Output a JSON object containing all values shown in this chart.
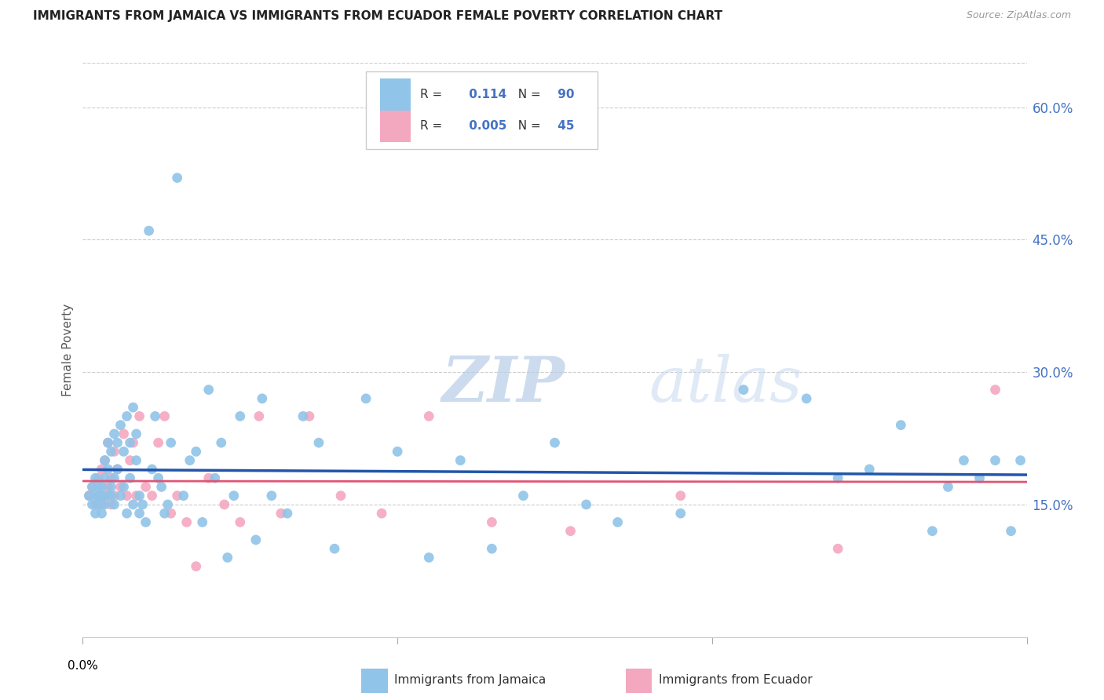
{
  "title": "IMMIGRANTS FROM JAMAICA VS IMMIGRANTS FROM ECUADOR FEMALE POVERTY CORRELATION CHART",
  "source": "Source: ZipAtlas.com",
  "ylabel": "Female Poverty",
  "right_yticks": [
    "60.0%",
    "45.0%",
    "30.0%",
    "15.0%"
  ],
  "right_ytick_vals": [
    0.6,
    0.45,
    0.3,
    0.15
  ],
  "xlim": [
    0.0,
    0.3
  ],
  "ylim": [
    0.0,
    0.65
  ],
  "jamaica_color": "#90c4e8",
  "ecuador_color": "#f4a8c0",
  "jamaica_line_color": "#2255aa",
  "ecuador_line_color": "#e05575",
  "jamaica_R": 0.114,
  "jamaica_N": 90,
  "ecuador_R": 0.005,
  "ecuador_N": 45,
  "watermark_zip": "ZIP",
  "watermark_atlas": "atlas",
  "jamaica_x": [
    0.002,
    0.003,
    0.003,
    0.004,
    0.004,
    0.004,
    0.005,
    0.005,
    0.005,
    0.006,
    0.006,
    0.006,
    0.007,
    0.007,
    0.007,
    0.008,
    0.008,
    0.008,
    0.009,
    0.009,
    0.009,
    0.01,
    0.01,
    0.01,
    0.011,
    0.011,
    0.012,
    0.012,
    0.013,
    0.013,
    0.014,
    0.014,
    0.015,
    0.015,
    0.016,
    0.016,
    0.017,
    0.017,
    0.018,
    0.018,
    0.019,
    0.02,
    0.021,
    0.022,
    0.023,
    0.024,
    0.025,
    0.026,
    0.027,
    0.028,
    0.03,
    0.032,
    0.034,
    0.036,
    0.038,
    0.04,
    0.042,
    0.044,
    0.046,
    0.048,
    0.05,
    0.055,
    0.057,
    0.06,
    0.065,
    0.07,
    0.075,
    0.08,
    0.09,
    0.1,
    0.11,
    0.12,
    0.13,
    0.14,
    0.15,
    0.16,
    0.17,
    0.19,
    0.21,
    0.23,
    0.24,
    0.25,
    0.26,
    0.27,
    0.275,
    0.28,
    0.285,
    0.29,
    0.295,
    0.298
  ],
  "jamaica_y": [
    0.16,
    0.15,
    0.17,
    0.14,
    0.16,
    0.18,
    0.15,
    0.17,
    0.16,
    0.14,
    0.17,
    0.16,
    0.18,
    0.15,
    0.2,
    0.19,
    0.16,
    0.22,
    0.17,
    0.21,
    0.16,
    0.23,
    0.18,
    0.15,
    0.22,
    0.19,
    0.24,
    0.16,
    0.21,
    0.17,
    0.25,
    0.14,
    0.22,
    0.18,
    0.26,
    0.15,
    0.23,
    0.2,
    0.16,
    0.14,
    0.15,
    0.13,
    0.46,
    0.19,
    0.25,
    0.18,
    0.17,
    0.14,
    0.15,
    0.22,
    0.52,
    0.16,
    0.2,
    0.21,
    0.13,
    0.28,
    0.18,
    0.22,
    0.09,
    0.16,
    0.25,
    0.11,
    0.27,
    0.16,
    0.14,
    0.25,
    0.22,
    0.1,
    0.27,
    0.21,
    0.09,
    0.2,
    0.1,
    0.16,
    0.22,
    0.15,
    0.13,
    0.14,
    0.28,
    0.27,
    0.18,
    0.19,
    0.24,
    0.12,
    0.17,
    0.2,
    0.18,
    0.2,
    0.12,
    0.2
  ],
  "ecuador_x": [
    0.002,
    0.003,
    0.004,
    0.005,
    0.005,
    0.006,
    0.006,
    0.007,
    0.007,
    0.008,
    0.008,
    0.009,
    0.009,
    0.01,
    0.01,
    0.011,
    0.012,
    0.013,
    0.014,
    0.015,
    0.016,
    0.017,
    0.018,
    0.02,
    0.022,
    0.024,
    0.026,
    0.028,
    0.03,
    0.033,
    0.036,
    0.04,
    0.045,
    0.05,
    0.056,
    0.063,
    0.072,
    0.082,
    0.095,
    0.11,
    0.13,
    0.155,
    0.19,
    0.24,
    0.29
  ],
  "ecuador_y": [
    0.16,
    0.17,
    0.15,
    0.18,
    0.16,
    0.19,
    0.15,
    0.2,
    0.16,
    0.17,
    0.22,
    0.15,
    0.18,
    0.21,
    0.16,
    0.19,
    0.17,
    0.23,
    0.16,
    0.2,
    0.22,
    0.16,
    0.25,
    0.17,
    0.16,
    0.22,
    0.25,
    0.14,
    0.16,
    0.13,
    0.08,
    0.18,
    0.15,
    0.13,
    0.25,
    0.14,
    0.25,
    0.16,
    0.14,
    0.25,
    0.13,
    0.12,
    0.16,
    0.1,
    0.28
  ]
}
